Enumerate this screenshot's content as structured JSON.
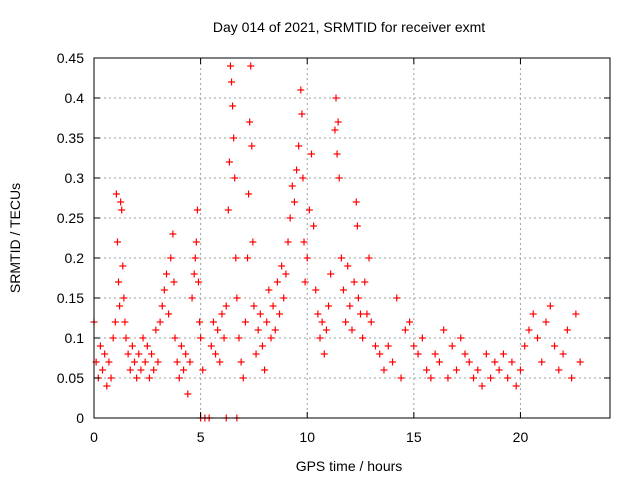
{
  "chart_data": {
    "type": "scatter",
    "title": "Day 014 of 2021, SRMTID for receiver exmt",
    "xlabel": "GPS time / hours",
    "ylabel": "SRMTID / TECUs",
    "xlim": [
      0,
      24.2
    ],
    "ylim": [
      0,
      0.45
    ],
    "x_ticks": [
      0,
      5,
      10,
      15,
      20
    ],
    "x_tick_labels": [
      "0",
      "5",
      "10",
      "15",
      "20"
    ],
    "y_ticks": [
      0,
      0.05,
      0.1,
      0.15,
      0.2,
      0.25,
      0.3,
      0.35,
      0.4,
      0.45
    ],
    "y_tick_labels": [
      "0",
      "0.05",
      "0.1",
      "0.15",
      "0.2",
      "0.25",
      "0.3",
      "0.35",
      "0.4",
      "0.45"
    ],
    "grid": true,
    "legend": "none",
    "series": [
      {
        "name": "SRMTID",
        "color": "#ff0000",
        "marker": "plus",
        "points": [
          [
            0.0,
            0.12
          ],
          [
            0.1,
            0.07
          ],
          [
            0.2,
            0.05
          ],
          [
            0.3,
            0.09
          ],
          [
            0.4,
            0.06
          ],
          [
            0.5,
            0.08
          ],
          [
            0.6,
            0.04
          ],
          [
            0.7,
            0.07
          ],
          [
            0.8,
            0.05
          ],
          [
            0.9,
            0.1
          ],
          [
            1.0,
            0.12
          ],
          [
            1.05,
            0.28
          ],
          [
            1.1,
            0.22
          ],
          [
            1.15,
            0.17
          ],
          [
            1.2,
            0.14
          ],
          [
            1.25,
            0.27
          ],
          [
            1.3,
            0.26
          ],
          [
            1.35,
            0.19
          ],
          [
            1.4,
            0.15
          ],
          [
            1.45,
            0.12
          ],
          [
            1.5,
            0.1
          ],
          [
            1.6,
            0.08
          ],
          [
            1.7,
            0.06
          ],
          [
            1.8,
            0.09
          ],
          [
            1.9,
            0.07
          ],
          [
            2.0,
            0.05
          ],
          [
            2.1,
            0.08
          ],
          [
            2.2,
            0.06
          ],
          [
            2.3,
            0.1
          ],
          [
            2.4,
            0.07
          ],
          [
            2.5,
            0.09
          ],
          [
            2.6,
            0.05
          ],
          [
            2.7,
            0.08
          ],
          [
            2.8,
            0.06
          ],
          [
            2.9,
            0.11
          ],
          [
            3.0,
            0.07
          ],
          [
            3.1,
            0.12
          ],
          [
            3.2,
            0.14
          ],
          [
            3.3,
            0.16
          ],
          [
            3.4,
            0.18
          ],
          [
            3.5,
            0.13
          ],
          [
            3.6,
            0.2
          ],
          [
            3.7,
            0.23
          ],
          [
            3.75,
            0.17
          ],
          [
            3.8,
            0.1
          ],
          [
            3.9,
            0.07
          ],
          [
            4.0,
            0.05
          ],
          [
            4.1,
            0.09
          ],
          [
            4.2,
            0.06
          ],
          [
            4.3,
            0.08
          ],
          [
            4.4,
            0.03
          ],
          [
            4.5,
            0.07
          ],
          [
            4.6,
            0.15
          ],
          [
            4.7,
            0.18
          ],
          [
            4.75,
            0.2
          ],
          [
            4.8,
            0.22
          ],
          [
            4.85,
            0.26
          ],
          [
            4.9,
            0.17
          ],
          [
            4.95,
            0.12
          ],
          [
            5.0,
            0.1
          ],
          [
            5.1,
            0.06
          ],
          [
            5.0,
            0.0
          ],
          [
            5.2,
            0.0
          ],
          [
            5.4,
            0.0
          ],
          [
            6.2,
            0.0
          ],
          [
            6.7,
            0.0
          ],
          [
            5.5,
            0.09
          ],
          [
            5.6,
            0.12
          ],
          [
            5.7,
            0.08
          ],
          [
            5.8,
            0.11
          ],
          [
            5.9,
            0.07
          ],
          [
            6.0,
            0.13
          ],
          [
            6.1,
            0.1
          ],
          [
            6.2,
            0.14
          ],
          [
            6.3,
            0.26
          ],
          [
            6.35,
            0.32
          ],
          [
            6.4,
            0.44
          ],
          [
            6.45,
            0.42
          ],
          [
            6.5,
            0.39
          ],
          [
            6.55,
            0.35
          ],
          [
            6.6,
            0.3
          ],
          [
            6.65,
            0.2
          ],
          [
            6.7,
            0.15
          ],
          [
            6.8,
            0.1
          ],
          [
            6.9,
            0.07
          ],
          [
            7.0,
            0.05
          ],
          [
            7.1,
            0.12
          ],
          [
            7.2,
            0.2
          ],
          [
            7.25,
            0.28
          ],
          [
            7.3,
            0.37
          ],
          [
            7.35,
            0.44
          ],
          [
            7.4,
            0.34
          ],
          [
            7.45,
            0.22
          ],
          [
            7.5,
            0.14
          ],
          [
            7.6,
            0.08
          ],
          [
            7.7,
            0.11
          ],
          [
            7.8,
            0.13
          ],
          [
            7.9,
            0.09
          ],
          [
            8.0,
            0.06
          ],
          [
            8.1,
            0.12
          ],
          [
            8.2,
            0.16
          ],
          [
            8.3,
            0.1
          ],
          [
            8.4,
            0.14
          ],
          [
            8.5,
            0.11
          ],
          [
            8.6,
            0.17
          ],
          [
            8.7,
            0.13
          ],
          [
            8.8,
            0.19
          ],
          [
            8.9,
            0.15
          ],
          [
            9.0,
            0.18
          ],
          [
            9.1,
            0.22
          ],
          [
            9.2,
            0.25
          ],
          [
            9.3,
            0.29
          ],
          [
            9.4,
            0.27
          ],
          [
            9.5,
            0.31
          ],
          [
            9.6,
            0.34
          ],
          [
            9.7,
            0.41
          ],
          [
            9.75,
            0.38
          ],
          [
            9.8,
            0.3
          ],
          [
            9.85,
            0.22
          ],
          [
            9.9,
            0.17
          ],
          [
            10.0,
            0.2
          ],
          [
            10.1,
            0.26
          ],
          [
            10.2,
            0.33
          ],
          [
            10.3,
            0.24
          ],
          [
            10.4,
            0.16
          ],
          [
            10.5,
            0.13
          ],
          [
            10.6,
            0.1
          ],
          [
            10.7,
            0.12
          ],
          [
            10.8,
            0.08
          ],
          [
            10.9,
            0.11
          ],
          [
            11.0,
            0.14
          ],
          [
            11.1,
            0.18
          ],
          [
            11.3,
            0.36
          ],
          [
            11.35,
            0.4
          ],
          [
            11.4,
            0.33
          ],
          [
            11.45,
            0.37
          ],
          [
            11.5,
            0.3
          ],
          [
            11.6,
            0.2
          ],
          [
            11.7,
            0.16
          ],
          [
            11.8,
            0.12
          ],
          [
            11.9,
            0.19
          ],
          [
            12.0,
            0.14
          ],
          [
            12.1,
            0.11
          ],
          [
            12.2,
            0.17
          ],
          [
            12.3,
            0.27
          ],
          [
            12.35,
            0.24
          ],
          [
            12.4,
            0.15
          ],
          [
            12.5,
            0.13
          ],
          [
            12.6,
            0.1
          ],
          [
            12.7,
            0.17
          ],
          [
            12.8,
            0.13
          ],
          [
            12.9,
            0.2
          ],
          [
            13.0,
            0.12
          ],
          [
            13.2,
            0.09
          ],
          [
            13.4,
            0.08
          ],
          [
            13.6,
            0.06
          ],
          [
            13.8,
            0.09
          ],
          [
            14.0,
            0.07
          ],
          [
            14.2,
            0.15
          ],
          [
            14.4,
            0.05
          ],
          [
            14.6,
            0.11
          ],
          [
            14.8,
            0.12
          ],
          [
            15.0,
            0.09
          ],
          [
            15.2,
            0.08
          ],
          [
            15.4,
            0.1
          ],
          [
            15.6,
            0.06
          ],
          [
            15.8,
            0.05
          ],
          [
            16.0,
            0.08
          ],
          [
            16.2,
            0.07
          ],
          [
            16.4,
            0.11
          ],
          [
            16.6,
            0.05
          ],
          [
            16.8,
            0.09
          ],
          [
            17.0,
            0.06
          ],
          [
            17.2,
            0.1
          ],
          [
            17.4,
            0.08
          ],
          [
            17.6,
            0.07
          ],
          [
            17.8,
            0.05
          ],
          [
            18.0,
            0.06
          ],
          [
            18.2,
            0.04
          ],
          [
            18.4,
            0.08
          ],
          [
            18.6,
            0.05
          ],
          [
            18.8,
            0.07
          ],
          [
            19.0,
            0.06
          ],
          [
            19.2,
            0.08
          ],
          [
            19.4,
            0.05
          ],
          [
            19.6,
            0.07
          ],
          [
            19.8,
            0.04
          ],
          [
            20.0,
            0.06
          ],
          [
            20.2,
            0.09
          ],
          [
            20.4,
            0.11
          ],
          [
            20.6,
            0.13
          ],
          [
            20.8,
            0.1
          ],
          [
            21.0,
            0.07
          ],
          [
            21.2,
            0.12
          ],
          [
            21.4,
            0.14
          ],
          [
            21.6,
            0.09
          ],
          [
            21.8,
            0.06
          ],
          [
            22.0,
            0.08
          ],
          [
            22.2,
            0.11
          ],
          [
            22.4,
            0.05
          ],
          [
            22.6,
            0.13
          ],
          [
            22.8,
            0.07
          ]
        ]
      }
    ]
  }
}
